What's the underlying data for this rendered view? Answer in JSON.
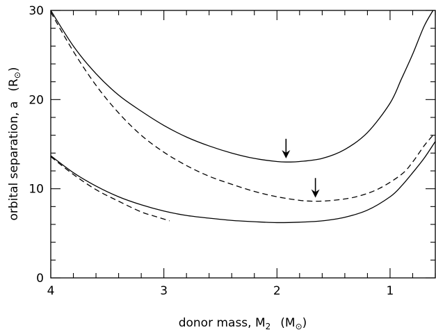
{
  "chart_data": {
    "type": "line",
    "title": "",
    "xlabel": "donor mass, M",
    "xlabel_sub": "2",
    "xlabel_unit": "(M",
    "xlabel_unit_sub": "⊙",
    "xlabel_unit_close": ")",
    "ylabel": "orbital separation, a",
    "ylabel_unit": "(R",
    "ylabel_unit_sub": "⊙",
    "ylabel_unit_close": ")",
    "xlim": [
      4.0,
      0.6
    ],
    "ylim": [
      0,
      30
    ],
    "x_reversed": true,
    "x_ticks": [
      4,
      3,
      2,
      1
    ],
    "x_tick_labels": [
      "4",
      "3",
      "2",
      "1"
    ],
    "y_ticks": [
      0,
      10,
      20,
      30
    ],
    "y_tick_labels": [
      "0",
      "10",
      "20",
      "30"
    ],
    "grid": false,
    "series": [
      {
        "style": "solid",
        "x": [
          4.0,
          3.8,
          3.6,
          3.4,
          3.2,
          3.0,
          2.8,
          2.6,
          2.4,
          2.2,
          2.0,
          1.9,
          1.8,
          1.6,
          1.4,
          1.2,
          1.0,
          0.9,
          0.8,
          0.7,
          0.62
        ],
        "y": [
          30.0,
          26.0,
          22.9,
          20.5,
          18.7,
          17.1,
          15.8,
          14.8,
          14.0,
          13.4,
          13.05,
          13.0,
          13.05,
          13.4,
          14.4,
          16.3,
          19.6,
          22.3,
          25.1,
          28.2,
          30.0
        ]
      },
      {
        "style": "dashed",
        "x": [
          4.0,
          3.8,
          3.6,
          3.4,
          3.2,
          3.0,
          2.8,
          2.6,
          2.4,
          2.2,
          2.0,
          1.8,
          1.66,
          1.5,
          1.3,
          1.1,
          0.9,
          0.8,
          0.7,
          0.62
        ],
        "y": [
          29.8,
          25.4,
          21.6,
          18.5,
          16.0,
          14.1,
          12.6,
          11.4,
          10.5,
          9.7,
          9.1,
          8.7,
          8.6,
          8.7,
          9.1,
          10.0,
          11.6,
          13.0,
          14.8,
          16.0
        ]
      },
      {
        "style": "solid",
        "x": [
          4.0,
          3.8,
          3.6,
          3.4,
          3.2,
          3.0,
          2.8,
          2.6,
          2.4,
          2.2,
          2.0,
          1.8,
          1.6,
          1.4,
          1.2,
          1.0,
          0.9,
          0.8,
          0.7,
          0.6
        ],
        "y": [
          13.7,
          11.8,
          10.3,
          9.1,
          8.2,
          7.5,
          7.0,
          6.7,
          6.45,
          6.3,
          6.2,
          6.25,
          6.4,
          6.8,
          7.6,
          9.1,
          10.3,
          11.8,
          13.4,
          15.3
        ]
      },
      {
        "style": "dashed",
        "x": [
          4.0,
          3.8,
          3.6,
          3.4,
          3.2,
          3.05,
          2.95
        ],
        "y": [
          13.6,
          11.6,
          9.9,
          8.6,
          7.4,
          6.8,
          6.4
        ]
      }
    ],
    "annotations": [
      {
        "type": "arrow",
        "x": 1.92,
        "y_tip": 13.4,
        "y_tail": 15.6
      },
      {
        "type": "arrow",
        "x": 1.66,
        "y_tip": 9.0,
        "y_tail": 11.2
      }
    ]
  }
}
